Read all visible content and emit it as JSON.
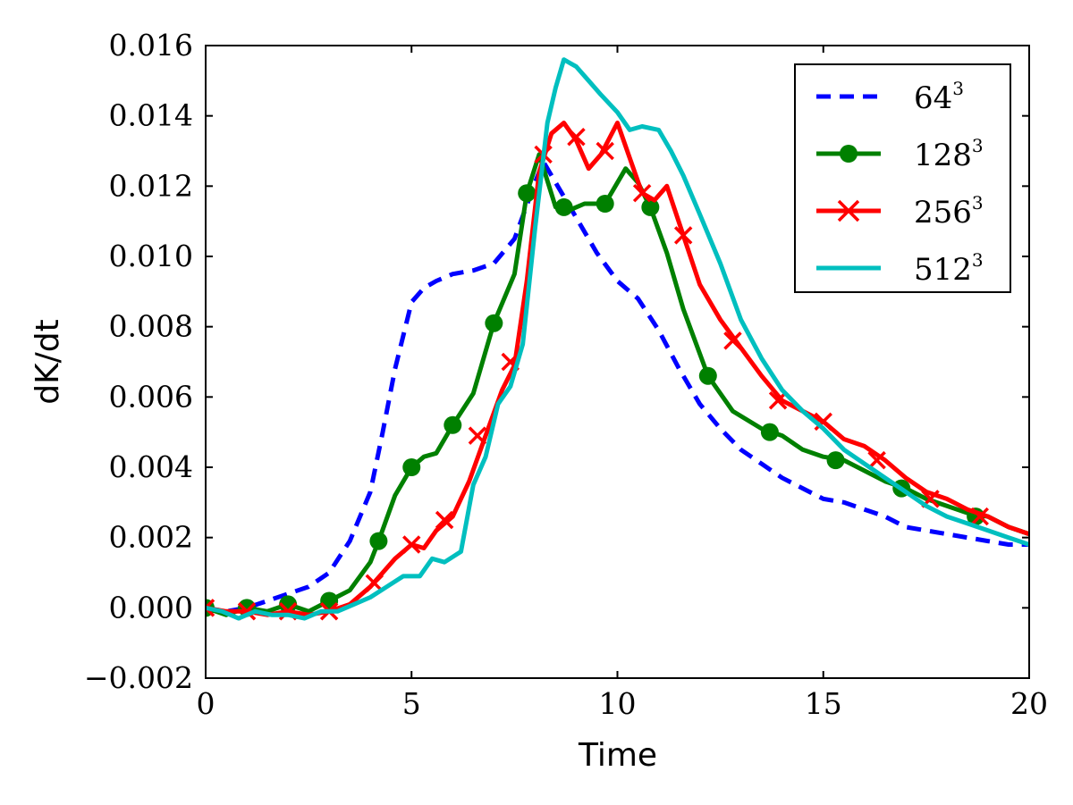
{
  "chart_data": {
    "type": "line",
    "title": "",
    "xlabel": "Time",
    "ylabel": "dK/dt",
    "xlim": [
      0,
      20
    ],
    "ylim": [
      -0.002,
      0.016
    ],
    "xticks": [
      0,
      5,
      10,
      15,
      20
    ],
    "xtick_labels": [
      "0",
      "5",
      "10",
      "15",
      "20"
    ],
    "yticks": [
      -0.002,
      0.0,
      0.002,
      0.004,
      0.006,
      0.008,
      0.01,
      0.012,
      0.014,
      0.016
    ],
    "ytick_labels": [
      "−0.002",
      "0.000",
      "0.002",
      "0.004",
      "0.006",
      "0.008",
      "0.010",
      "0.012",
      "0.014",
      "0.016"
    ],
    "grid": false,
    "legend_position": "top-right",
    "series": [
      {
        "name": "64",
        "name_sup": "3",
        "color": "#0000ff",
        "style": "dashed",
        "marker": "none",
        "x": [
          0,
          0.5,
          1,
          1.5,
          2,
          2.5,
          3,
          3.5,
          4,
          4.3,
          4.6,
          5,
          5.3,
          5.6,
          6,
          6.5,
          7,
          7.5,
          8,
          8.2,
          8.5,
          9,
          9.5,
          10,
          10.5,
          11,
          11.5,
          12,
          12.5,
          13,
          13.5,
          14,
          14.5,
          15,
          15.5,
          16,
          16.5,
          17,
          17.5,
          18,
          18.5,
          19,
          19.5,
          20
        ],
        "y": [
          0.0,
          -0.0001,
          0.0,
          0.0002,
          0.0004,
          0.0006,
          0.001,
          0.0019,
          0.0033,
          0.005,
          0.0068,
          0.0087,
          0.0091,
          0.0093,
          0.0095,
          0.0096,
          0.0098,
          0.0105,
          0.0121,
          0.0127,
          0.0121,
          0.0111,
          0.0101,
          0.0093,
          0.0088,
          0.0079,
          0.0068,
          0.0058,
          0.0051,
          0.0045,
          0.0041,
          0.0037,
          0.0034,
          0.0031,
          0.003,
          0.0028,
          0.0026,
          0.0023,
          0.0022,
          0.0021,
          0.002,
          0.0019,
          0.0018,
          0.0018
        ]
      },
      {
        "name": "128",
        "name_sup": "3",
        "color": "#008000",
        "style": "solid",
        "marker": "circle",
        "x": [
          0,
          0.5,
          1,
          1.5,
          2,
          2.5,
          3,
          3.5,
          4,
          4.2,
          4.6,
          5,
          5.3,
          5.6,
          6,
          6.5,
          7,
          7.5,
          7.8,
          8.1,
          8.5,
          8.8,
          9.2,
          9.7,
          10.2,
          10.5,
          10.8,
          11.2,
          11.6,
          12.2,
          12.8,
          13.5,
          14,
          14.5,
          15,
          15.5,
          16,
          16.5,
          17,
          17.5,
          18,
          18.5,
          19,
          19.5,
          20
        ],
        "y": [
          0.0,
          -0.0002,
          0.0,
          -0.0001,
          0.0001,
          -0.0001,
          0.0002,
          0.0005,
          0.0013,
          0.0019,
          0.0032,
          0.004,
          0.0043,
          0.0044,
          0.0052,
          0.0061,
          0.0081,
          0.0095,
          0.0118,
          0.0129,
          0.0114,
          0.0113,
          0.0115,
          0.0115,
          0.0125,
          0.0121,
          0.0114,
          0.0101,
          0.0085,
          0.0066,
          0.0056,
          0.0051,
          0.0049,
          0.0045,
          0.0043,
          0.0042,
          0.0039,
          0.0036,
          0.0034,
          0.0031,
          0.0029,
          0.0027,
          0.0026,
          0.0023,
          0.0021
        ],
        "marker_x": [
          0,
          1,
          2,
          3,
          4.2,
          5,
          6,
          7,
          7.8,
          8.7,
          9.7,
          10.8,
          12.2,
          13.7,
          15.3,
          16.9,
          18.7
        ],
        "marker_y": [
          0.0,
          0.0,
          0.0001,
          0.0002,
          0.0019,
          0.004,
          0.0052,
          0.0081,
          0.0118,
          0.0114,
          0.0115,
          0.0114,
          0.0066,
          0.005,
          0.0042,
          0.0034,
          0.0026
        ]
      },
      {
        "name": "256",
        "name_sup": "3",
        "color": "#ff0000",
        "style": "solid",
        "marker": "x",
        "x": [
          0,
          0.5,
          1,
          1.5,
          2,
          2.5,
          3,
          3.5,
          4,
          4.3,
          4.6,
          5,
          5.3,
          5.6,
          6,
          6.4,
          6.8,
          7.2,
          7.5,
          7.8,
          8.1,
          8.4,
          8.7,
          9.0,
          9.3,
          9.6,
          10.0,
          10.3,
          10.6,
          10.9,
          11.2,
          11.6,
          12.0,
          12.5,
          13.0,
          13.5,
          14,
          14.5,
          15,
          15.5,
          16,
          16.5,
          17,
          17.5,
          18,
          18.5,
          19,
          19.5,
          20
        ],
        "y": [
          0.0,
          -0.0001,
          -0.0001,
          -0.0002,
          -0.0001,
          -0.0002,
          -0.0001,
          0.0001,
          0.0006,
          0.001,
          0.0014,
          0.0018,
          0.0017,
          0.0022,
          0.0026,
          0.0036,
          0.0049,
          0.0062,
          0.0069,
          0.0093,
          0.0124,
          0.0135,
          0.0138,
          0.0133,
          0.0125,
          0.0129,
          0.0138,
          0.0128,
          0.0118,
          0.0116,
          0.012,
          0.0106,
          0.0092,
          0.0082,
          0.0074,
          0.0066,
          0.0059,
          0.0056,
          0.0053,
          0.0048,
          0.0046,
          0.0042,
          0.0037,
          0.0033,
          0.0031,
          0.0028,
          0.0026,
          0.0023,
          0.0021
        ],
        "marker_x": [
          0,
          1,
          2,
          3,
          4.1,
          5,
          5.8,
          6.6,
          7.4,
          8.2,
          9.0,
          9.7,
          10.6,
          11.6,
          12.8,
          13.9,
          15.0,
          16.3,
          17.6,
          18.8
        ],
        "marker_y": [
          0.0,
          -0.0001,
          -0.0001,
          -0.0001,
          0.0007,
          0.0018,
          0.0025,
          0.0049,
          0.007,
          0.0129,
          0.0134,
          0.013,
          0.0118,
          0.0106,
          0.0076,
          0.0059,
          0.0053,
          0.0042,
          0.0031,
          0.0026
        ]
      },
      {
        "name": "512",
        "name_sup": "3",
        "color": "#00bfbf",
        "style": "solid",
        "marker": "none",
        "x": [
          0,
          0.4,
          0.8,
          1.2,
          1.6,
          2.0,
          2.4,
          2.8,
          3.2,
          3.6,
          4.0,
          4.4,
          4.8,
          5.2,
          5.5,
          5.8,
          6.2,
          6.5,
          6.8,
          7.1,
          7.4,
          7.7,
          8.0,
          8.3,
          8.5,
          8.7,
          9.0,
          9.3,
          9.6,
          10.0,
          10.3,
          10.6,
          11.0,
          11.3,
          11.6,
          12.0,
          12.5,
          13.0,
          13.5,
          14,
          14.5,
          15,
          15.5,
          16,
          16.5,
          17,
          17.5,
          18,
          18.5,
          19,
          19.5,
          20
        ],
        "y": [
          0.0,
          -0.0001,
          -0.0003,
          -0.0001,
          -0.0002,
          -0.0002,
          -0.0003,
          -0.0001,
          -0.0001,
          0.0001,
          0.0003,
          0.0006,
          0.0009,
          0.0009,
          0.0014,
          0.0013,
          0.0016,
          0.0035,
          0.0043,
          0.0058,
          0.0063,
          0.0075,
          0.0108,
          0.0138,
          0.0148,
          0.0156,
          0.0154,
          0.015,
          0.0146,
          0.0141,
          0.0136,
          0.0137,
          0.0136,
          0.013,
          0.0123,
          0.0112,
          0.0098,
          0.0082,
          0.0071,
          0.0062,
          0.0056,
          0.0051,
          0.0045,
          0.0041,
          0.0037,
          0.0033,
          0.0029,
          0.0026,
          0.0024,
          0.0022,
          0.002,
          0.0018
        ]
      }
    ]
  }
}
